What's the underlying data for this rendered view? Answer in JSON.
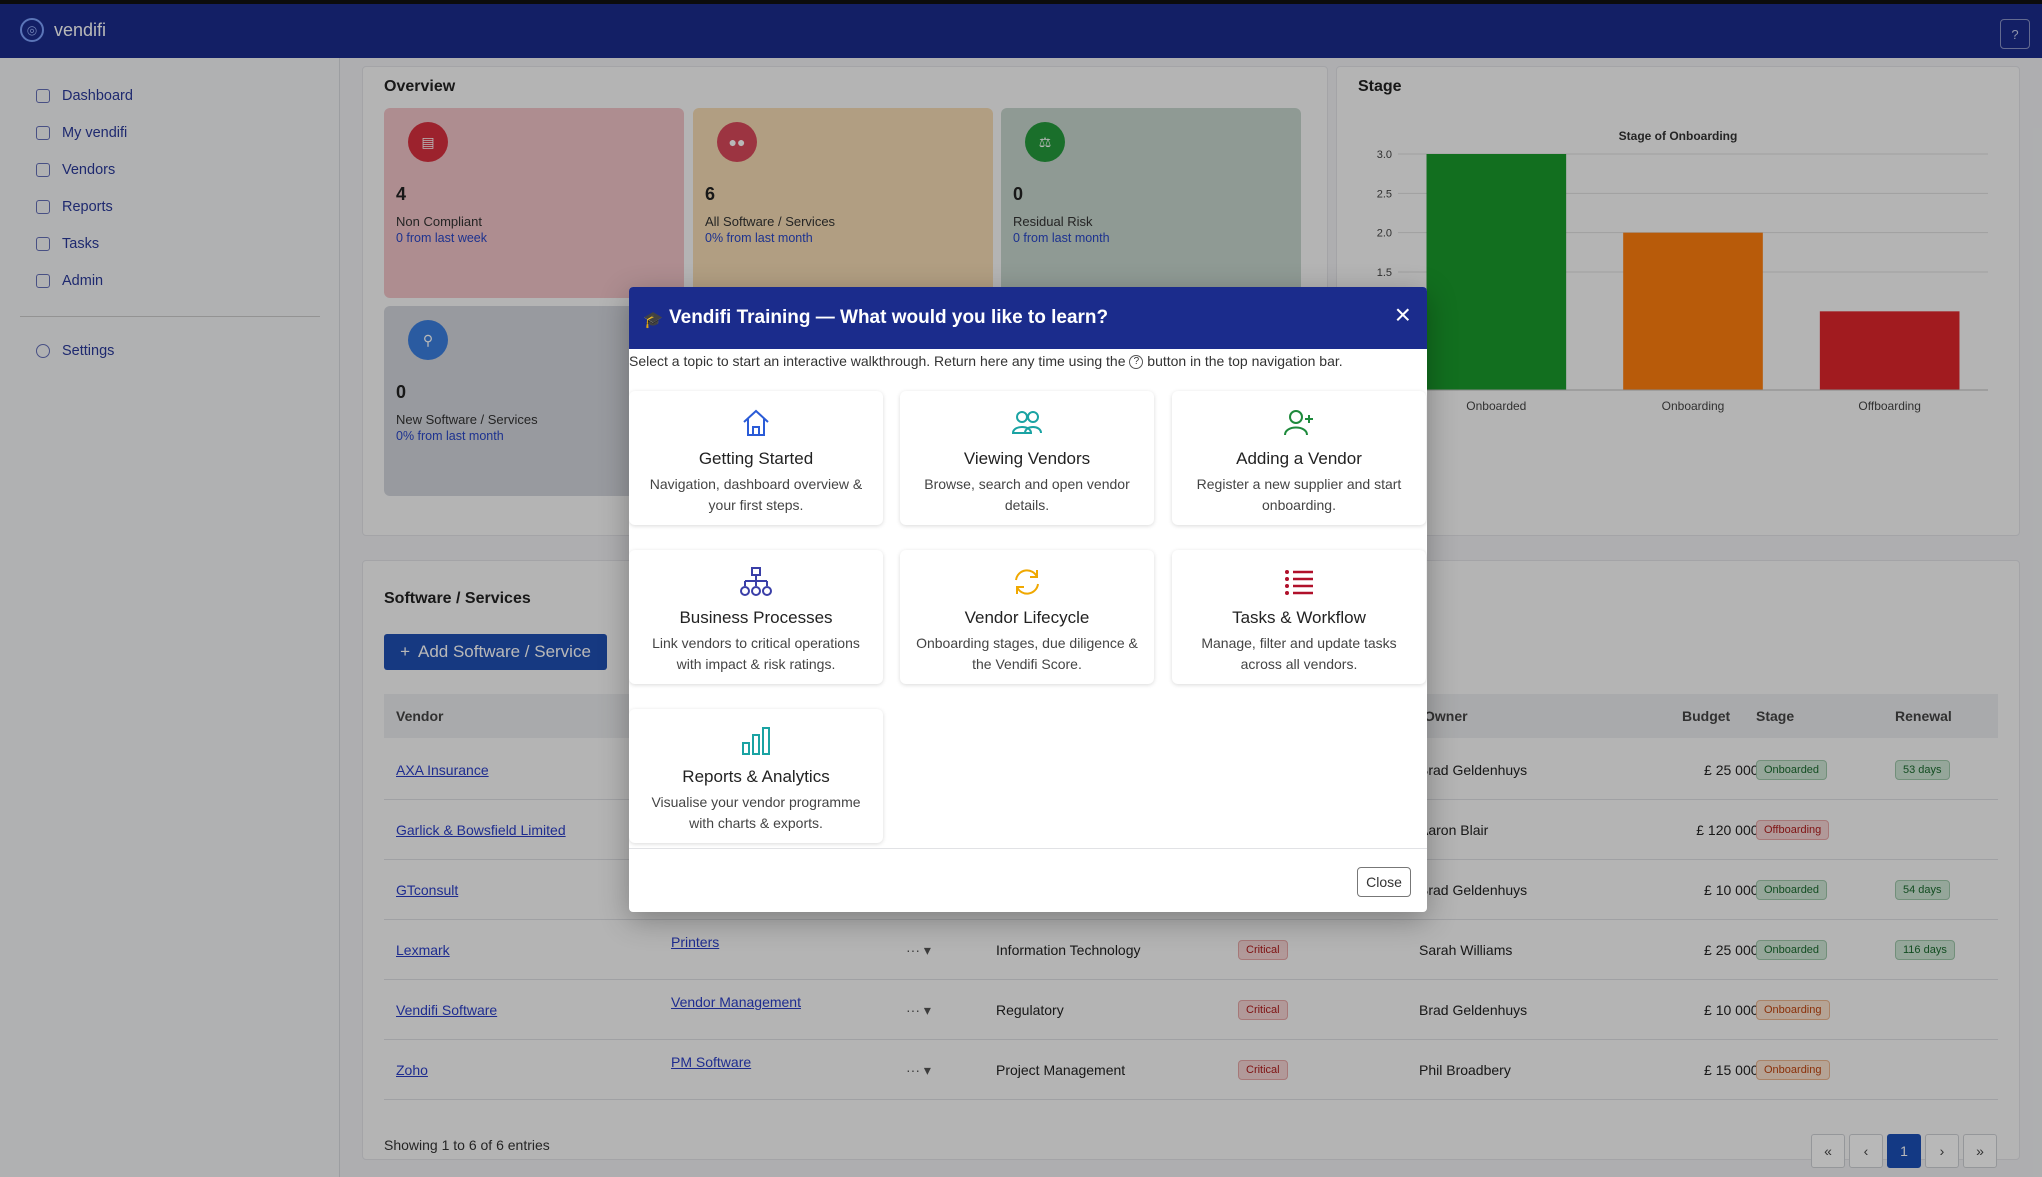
{
  "topbar": {
    "brand": "vendifi",
    "help_icon": "question-circle-icon"
  },
  "sidebar": {
    "items": [
      {
        "label": "Dashboard",
        "icon": "dashboard-icon"
      },
      {
        "label": "My vendifi",
        "icon": "tag-icon"
      },
      {
        "label": "Vendors",
        "icon": "users-icon"
      },
      {
        "label": "Reports",
        "icon": "report-icon"
      },
      {
        "label": "Tasks",
        "icon": "list-icon"
      },
      {
        "label": "Admin",
        "icon": "briefcase-icon"
      },
      {
        "label": "Settings",
        "icon": "gear-icon"
      }
    ]
  },
  "overview": {
    "title": "Overview",
    "cards": [
      {
        "value": "4",
        "label": "Non Compliant",
        "sub": "0 from last week",
        "color": "#f2c4c8",
        "icon_color": "#d9303f"
      },
      {
        "value": "6",
        "label": "All Software / Services",
        "sub": "0% from last month",
        "color": "#f5dcb4",
        "icon_color": "#d9485a"
      },
      {
        "value": "0",
        "label": "Residual Risk",
        "sub": "0 from last month",
        "color": "#c6d6cd",
        "icon_color": "#249a3c"
      },
      {
        "value": "0",
        "label": "New Software / Services",
        "sub": "0% from last month",
        "color": "#d3d6dd",
        "icon_color": "#3b7fe0"
      }
    ]
  },
  "stage": {
    "title": "Stage"
  },
  "chart_data": {
    "type": "bar",
    "title": "Stage of Onboarding",
    "categories": [
      "Onboarded",
      "Onboarding",
      "Offboarding"
    ],
    "values": [
      3,
      2,
      1
    ],
    "colors": [
      "#1a9a2c",
      "#ff7f0e",
      "#e0262b"
    ],
    "ylim": [
      0,
      3
    ],
    "yticks": [
      "3.0",
      "2.5",
      "2.0",
      "1.5"
    ],
    "grid": true
  },
  "software": {
    "title": "Software / Services",
    "add_label": "Add Software / Service",
    "headers": {
      "vendor": "Vendor",
      "owner": "Owner",
      "budget": "Budget",
      "stage": "Stage",
      "renewal": "Renewal"
    },
    "rows": [
      {
        "vendor": "AXA Insurance",
        "service": "",
        "category": "",
        "criticality": "",
        "owner": "Brad Geldenhuys",
        "budget": "£ 25 000.00",
        "stage": "Onboarded",
        "renewal": "53 days"
      },
      {
        "vendor": "Garlick & Bowsfield Limited",
        "service": "",
        "category": "",
        "criticality": "",
        "owner": "Aaron Blair",
        "budget": "£ 120 000.00",
        "stage": "Offboarding",
        "renewal": ""
      },
      {
        "vendor": "GTconsult",
        "service": "",
        "category": "",
        "criticality": "",
        "owner": "Brad Geldenhuys",
        "budget": "£ 10 000.00",
        "stage": "Onboarded",
        "renewal": "54 days"
      },
      {
        "vendor": "Lexmark",
        "service": "Printers",
        "category": "Information Technology",
        "criticality": "Critical",
        "owner": "Sarah Williams",
        "budget": "£ 25 000.00",
        "stage": "Onboarded",
        "renewal": "116 days"
      },
      {
        "vendor": "Vendifi Software",
        "service": "Vendor Management",
        "category": "Regulatory",
        "criticality": "Critical",
        "owner": "Brad Geldenhuys",
        "budget": "£ 10 000.00",
        "stage": "Onboarding",
        "renewal": ""
      },
      {
        "vendor": "Zoho",
        "service": "PM Software",
        "category": "Project Management",
        "criticality": "Critical",
        "owner": "Phil Broadbery",
        "budget": "£ 15 000.00",
        "stage": "Onboarding",
        "renewal": ""
      }
    ],
    "footer": "Showing 1 to 6 of 6 entries",
    "pager": [
      "«",
      "‹",
      "1",
      "›",
      "»"
    ]
  },
  "modal": {
    "title": "Vendifi Training — What would you like to learn?",
    "intro_a": "Select a topic to start an interactive walkthrough. Return here any time using the",
    "intro_b": "button in the top navigation bar.",
    "close_label": "Close",
    "topics": [
      {
        "title": "Getting Started",
        "desc": "Navigation, dashboard overview & your first steps.",
        "icon": "home-icon",
        "color": "#2a5bd7"
      },
      {
        "title": "Viewing Vendors",
        "desc": "Browse, search and open vendor details.",
        "icon": "users-icon",
        "color": "#1aa3a3"
      },
      {
        "title": "Adding a Vendor",
        "desc": "Register a new supplier and start onboarding.",
        "icon": "user-plus-icon",
        "color": "#1e8a3c"
      },
      {
        "title": "Business Processes",
        "desc": "Link vendors to critical operations with impact & risk ratings.",
        "icon": "sitemap-icon",
        "color": "#3a3fa8"
      },
      {
        "title": "Vendor Lifecycle",
        "desc": "Onboarding stages, due diligence & the Vendifi Score.",
        "icon": "refresh-icon",
        "color": "#f0a800"
      },
      {
        "title": "Tasks & Workflow",
        "desc": "Manage, filter and update tasks across all vendors.",
        "icon": "list-icon",
        "color": "#b0102a"
      },
      {
        "title": "Reports & Analytics",
        "desc": "Visualise your vendor programme with charts & exports.",
        "icon": "bar-chart-icon",
        "color": "#1aa3a3"
      }
    ]
  }
}
